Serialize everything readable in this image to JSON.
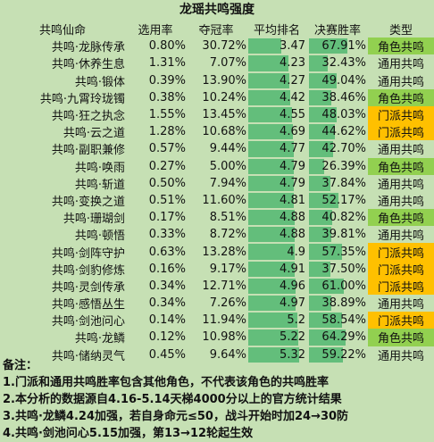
{
  "title": "龙瑶共鸣强度",
  "headers": [
    "共鸣仙命",
    "选用率",
    "夺冠率",
    "平均排名",
    "决赛胜率",
    "类型"
  ],
  "colors": {
    "sheet_bg": "#c6e0b4",
    "bar": "#63be7b",
    "type_角色共鸣": "#92d050",
    "type_通用共鸣": "#c6e0b4",
    "type_门派共鸣": "#ffc000"
  },
  "rank_scale_max": 6,
  "final_scale_max": 100,
  "rows": [
    {
      "name": "共鸣·龙脉传承",
      "pick": "0.80%",
      "win": "30.72%",
      "rank": "3.47",
      "final": "67.91%",
      "type": "角色共鸣"
    },
    {
      "name": "共鸣·休养生息",
      "pick": "1.31%",
      "win": "7.07%",
      "rank": "4.23",
      "final": "32.43%",
      "type": "通用共鸣"
    },
    {
      "name": "共鸣·锻体",
      "pick": "0.39%",
      "win": "13.90%",
      "rank": "4.27",
      "final": "49.04%",
      "type": "通用共鸣"
    },
    {
      "name": "共鸣·九霄玲珑镯",
      "pick": "0.38%",
      "win": "10.24%",
      "rank": "4.42",
      "final": "38.46%",
      "type": "角色共鸣"
    },
    {
      "name": "共鸣·狂之执念",
      "pick": "1.55%",
      "win": "13.45%",
      "rank": "4.55",
      "final": "48.03%",
      "type": "门派共鸣"
    },
    {
      "name": "共鸣·云之道",
      "pick": "1.28%",
      "win": "10.68%",
      "rank": "4.69",
      "final": "44.62%",
      "type": "门派共鸣"
    },
    {
      "name": "共鸣·副职兼修",
      "pick": "0.57%",
      "win": "9.44%",
      "rank": "4.77",
      "final": "42.70%",
      "type": "通用共鸣"
    },
    {
      "name": "共鸣·唤雨",
      "pick": "0.27%",
      "win": "5.00%",
      "rank": "4.79",
      "final": "26.39%",
      "type": "角色共鸣"
    },
    {
      "name": "共鸣·斩道",
      "pick": "0.50%",
      "win": "7.94%",
      "rank": "4.79",
      "final": "37.84%",
      "type": "通用共鸣"
    },
    {
      "name": "共鸣·变换之道",
      "pick": "0.51%",
      "win": "11.60%",
      "rank": "4.81",
      "final": "52.17%",
      "type": "通用共鸣"
    },
    {
      "name": "共鸣·珊瑚剑",
      "pick": "0.17%",
      "win": "8.51%",
      "rank": "4.88",
      "final": "40.82%",
      "type": "角色共鸣"
    },
    {
      "name": "共鸣·顿悟",
      "pick": "0.33%",
      "win": "8.72%",
      "rank": "4.88",
      "final": "39.81%",
      "type": "通用共鸣"
    },
    {
      "name": "共鸣·剑阵守护",
      "pick": "0.63%",
      "win": "13.28%",
      "rank": "4.9",
      "final": "57.35%",
      "type": "门派共鸣"
    },
    {
      "name": "共鸣·剑豹修炼",
      "pick": "0.16%",
      "win": "9.17%",
      "rank": "4.91",
      "final": "37.50%",
      "type": "门派共鸣"
    },
    {
      "name": "共鸣·灵剑传承",
      "pick": "0.34%",
      "win": "12.71%",
      "rank": "4.96",
      "final": "61.00%",
      "type": "门派共鸣"
    },
    {
      "name": "共鸣·感悟丛生",
      "pick": "0.34%",
      "win": "7.26%",
      "rank": "4.97",
      "final": "38.89%",
      "type": "通用共鸣"
    },
    {
      "name": "共鸣·剑池问心",
      "pick": "0.14%",
      "win": "11.94%",
      "rank": "5.2",
      "final": "58.54%",
      "type": "门派共鸣"
    },
    {
      "name": "共鸣·龙鳞",
      "pick": "0.12%",
      "win": "10.98%",
      "rank": "5.22",
      "final": "64.29%",
      "type": "角色共鸣"
    },
    {
      "name": "共鸣·储纳灵气",
      "pick": "0.45%",
      "win": "9.64%",
      "rank": "5.32",
      "final": "59.22%",
      "type": "通用共鸣"
    }
  ],
  "notes": {
    "heading": "备注：",
    "items": [
      "1.门派和通用共鸣胜率包含其他角色，不代表该角色的共鸣胜率",
      "2.本分析的数据源自4.16-5.14天梯4000分以上的官方统计结果",
      "3.共鸣·龙鳞4.24加强，若自身命元≤50，战斗开始时加24→30防",
      "4.共鸣·剑池问心5.15加强，第13→12轮起生效"
    ]
  }
}
